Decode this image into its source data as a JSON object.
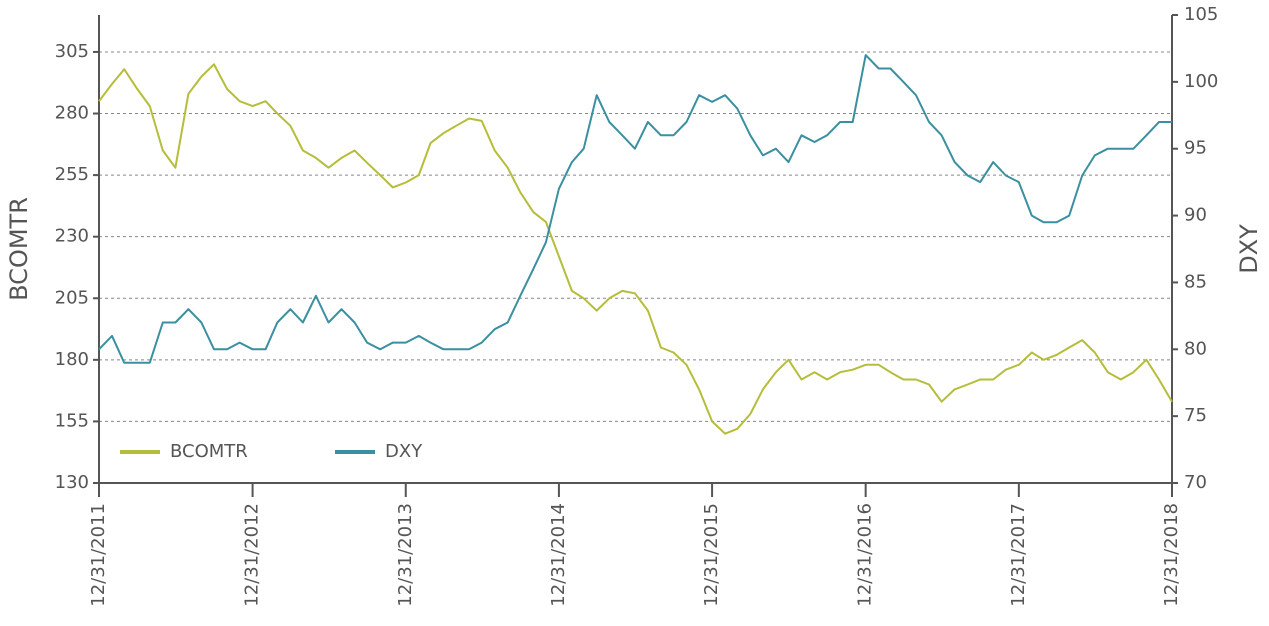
{
  "chart_data": {
    "type": "line",
    "y_label": "BCOMTR",
    "y2_label": "DXY",
    "x": [
      "2011-12-31",
      "2012-01-31",
      "2012-02-29",
      "2012-03-31",
      "2012-04-30",
      "2012-05-31",
      "2012-06-30",
      "2012-07-31",
      "2012-08-31",
      "2012-09-30",
      "2012-10-31",
      "2012-11-30",
      "2012-12-31",
      "2013-01-31",
      "2013-02-28",
      "2013-03-31",
      "2013-04-30",
      "2013-05-31",
      "2013-06-30",
      "2013-07-31",
      "2013-08-31",
      "2013-09-30",
      "2013-10-31",
      "2013-11-30",
      "2013-12-31",
      "2014-01-31",
      "2014-02-28",
      "2014-03-31",
      "2014-04-30",
      "2014-05-31",
      "2014-06-30",
      "2014-07-31",
      "2014-08-31",
      "2014-09-30",
      "2014-10-31",
      "2014-11-30",
      "2014-12-31",
      "2015-01-31",
      "2015-02-28",
      "2015-03-31",
      "2015-04-30",
      "2015-05-31",
      "2015-06-30",
      "2015-07-31",
      "2015-08-31",
      "2015-09-30",
      "2015-10-31",
      "2015-11-30",
      "2015-12-31",
      "2016-01-31",
      "2016-02-29",
      "2016-03-31",
      "2016-04-30",
      "2016-05-31",
      "2016-06-30",
      "2016-07-31",
      "2016-08-31",
      "2016-09-30",
      "2016-10-31",
      "2016-11-30",
      "2016-12-31",
      "2017-01-31",
      "2017-02-28",
      "2017-03-31",
      "2017-04-30",
      "2017-05-31",
      "2017-06-30",
      "2017-07-31",
      "2017-08-31",
      "2017-09-30",
      "2017-10-31",
      "2017-11-30",
      "2017-12-31",
      "2018-01-31",
      "2018-02-28",
      "2018-03-31",
      "2018-04-30",
      "2018-05-31",
      "2018-06-30",
      "2018-07-31",
      "2018-08-31",
      "2018-09-30",
      "2018-10-31",
      "2018-11-30",
      "2018-12-31"
    ],
    "series": [
      {
        "name": "BCOMTR",
        "color": "#b5bd3a",
        "values": [
          285,
          292,
          298,
          290,
          283,
          265,
          258,
          288,
          295,
          300,
          290,
          285,
          283,
          285,
          280,
          275,
          265,
          262,
          258,
          262,
          265,
          260,
          255,
          250,
          252,
          255,
          268,
          272,
          275,
          278,
          277,
          265,
          258,
          248,
          240,
          236,
          222,
          208,
          205,
          200,
          205,
          208,
          207,
          200,
          185,
          183,
          178,
          168,
          155,
          150,
          152,
          158,
          168,
          175,
          180,
          172,
          175,
          172,
          175,
          176,
          178,
          178,
          175,
          172,
          172,
          170,
          163,
          168,
          170,
          172,
          172,
          176,
          178,
          183,
          180,
          182,
          185,
          188,
          183,
          175,
          172,
          175,
          180,
          172,
          163
        ]
      },
      {
        "name": "DXY",
        "color": "#3a8fa0",
        "axis": "y2",
        "values": [
          80,
          81,
          79,
          79,
          79,
          82,
          82,
          83,
          82,
          80,
          80,
          80.5,
          80,
          80,
          82,
          83,
          82,
          84,
          82,
          83,
          82,
          80.5,
          80,
          80.5,
          80.5,
          81,
          80.5,
          80,
          80,
          80,
          80.5,
          81.5,
          82,
          84,
          86,
          88,
          92,
          94,
          95,
          99,
          97,
          96,
          95,
          97,
          96,
          96,
          97,
          99,
          98.5,
          99,
          98,
          96,
          94.5,
          95,
          94,
          96,
          95.5,
          96,
          97,
          97,
          102,
          101,
          101,
          100,
          99,
          97,
          96,
          94,
          93,
          92.5,
          94,
          93,
          92.5,
          90,
          89.5,
          89.5,
          90,
          93,
          94.5,
          95,
          95,
          95,
          96,
          97,
          97
        ]
      }
    ],
    "xlim": [
      "2011-12-31",
      "2018-12-31"
    ],
    "xticks": [
      {
        "value": "2011-12-31",
        "label": "12/31/2011"
      },
      {
        "value": "2012-12-31",
        "label": "12/31/2012"
      },
      {
        "value": "2013-12-31",
        "label": "12/31/2013"
      },
      {
        "value": "2014-12-31",
        "label": "12/31/2014"
      },
      {
        "value": "2015-12-31",
        "label": "12/31/2015"
      },
      {
        "value": "2016-12-31",
        "label": "12/31/2016"
      },
      {
        "value": "2017-12-31",
        "label": "12/31/2017"
      },
      {
        "value": "2018-12-31",
        "label": "12/31/2018"
      }
    ],
    "ylim": [
      130,
      320
    ],
    "yticks": [
      130,
      155,
      180,
      205,
      230,
      255,
      280,
      305
    ],
    "y2lim": [
      70,
      105
    ],
    "y2ticks": [
      70,
      75,
      80,
      85,
      90,
      95,
      100,
      105
    ],
    "grid": true,
    "legend": "lower left"
  }
}
